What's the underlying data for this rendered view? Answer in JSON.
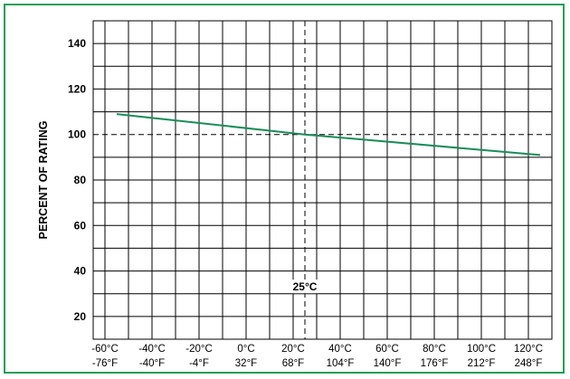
{
  "chart_data": {
    "type": "line",
    "title": "",
    "xlabel": "",
    "ylabel": "PERCENT OF RATING",
    "x_unit": "°C",
    "xlim": [
      -65,
      130
    ],
    "ylim": [
      10,
      150
    ],
    "x_ticks": [
      -60,
      -40,
      -20,
      0,
      20,
      40,
      60,
      80,
      100,
      120
    ],
    "x_tick_labels_c": [
      "-60°C",
      "-40°C",
      "-20°C",
      "0°C",
      "20°C",
      "40°C",
      "60°C",
      "80°C",
      "100°C",
      "120°C"
    ],
    "x_tick_labels_f": [
      "-76°F",
      "-40°F",
      "-4°F",
      "32°F",
      "68°F",
      "104°F",
      "140°F",
      "176°F",
      "212°F",
      "248°F"
    ],
    "y_ticks": [
      20,
      40,
      60,
      80,
      100,
      120,
      140
    ],
    "grid": true,
    "legend": "none",
    "series": [
      {
        "x": [
          -55,
          25,
          125
        ],
        "y": [
          109,
          100,
          91
        ],
        "color": "#1a8c5a"
      }
    ],
    "reference_lines": {
      "horizontal": {
        "y": 100,
        "style": "dashed"
      },
      "vertical": {
        "x": 25,
        "style": "dashed",
        "label": "25°C"
      }
    }
  },
  "colors": {
    "border": "#1f9e58",
    "line": "#1a8c5a",
    "grid": "#000000"
  }
}
